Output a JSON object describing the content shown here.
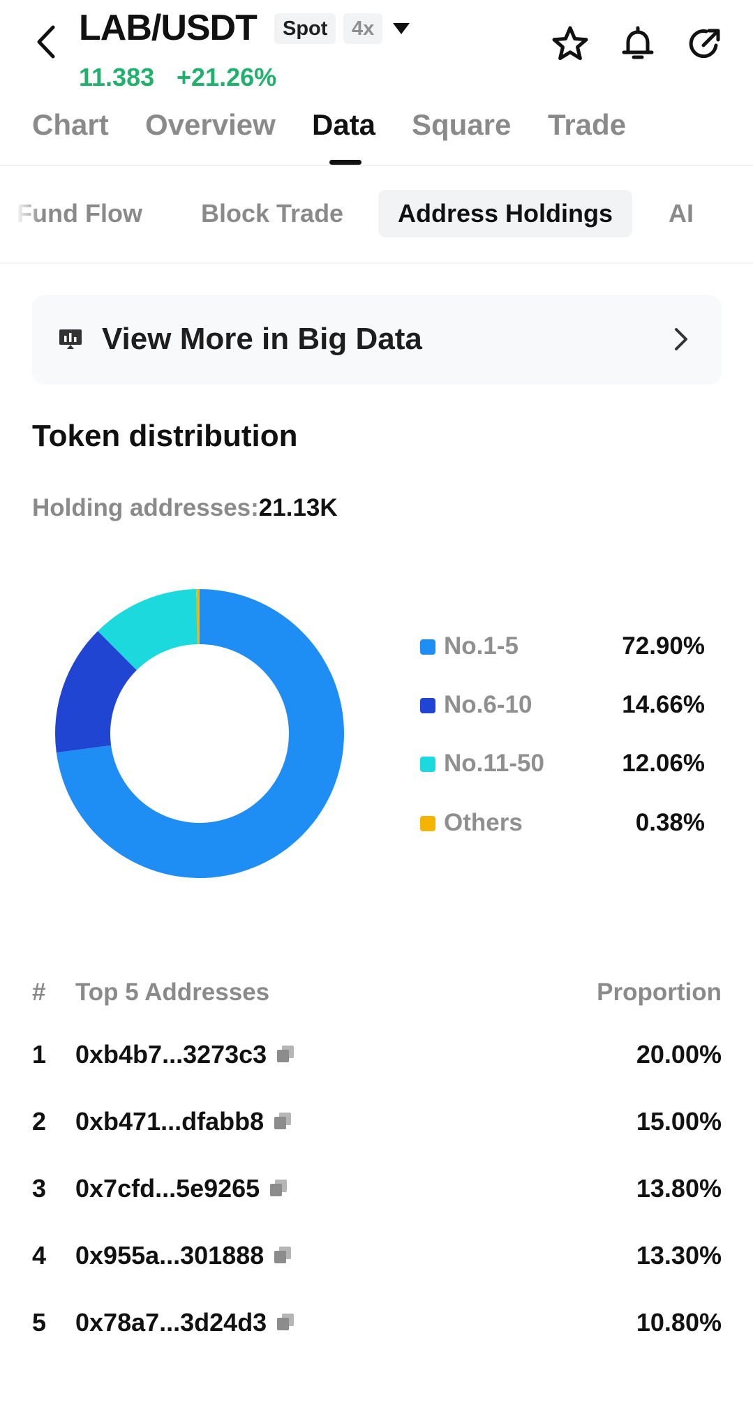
{
  "header": {
    "title": "LAB/USDT",
    "market_badge": "Spot",
    "leverage_badge": "4x",
    "price": "11.383",
    "change": "+21.26%",
    "accent_up": "#20b26c"
  },
  "main_tabs": [
    {
      "label": "Chart"
    },
    {
      "label": "Overview"
    },
    {
      "label": "Data",
      "active": true
    },
    {
      "label": "Square"
    },
    {
      "label": "Trade"
    }
  ],
  "sub_tabs": [
    {
      "label": "Fund Flow"
    },
    {
      "label": "Block Trade"
    },
    {
      "label": "Address Holdings",
      "active": true
    },
    {
      "label": "AI"
    }
  ],
  "banner": {
    "label": "View More in Big Data",
    "icon": "chart-board-icon"
  },
  "distribution": {
    "title": "Token distribution",
    "holding_label": "Holding addresses:",
    "holding_value": "21.13K"
  },
  "chart_data": {
    "type": "pie",
    "donut": true,
    "categories": [
      "No.1-5",
      "No.6-10",
      "No.11-50",
      "Others"
    ],
    "values": [
      72.9,
      14.66,
      12.06,
      0.38
    ],
    "labels": [
      "72.90%",
      "14.66%",
      "12.06%",
      "0.38%"
    ],
    "colors": [
      "#1e8ef5",
      "#1f45d2",
      "#1cd9dd",
      "#f5b400"
    ],
    "legend": "right"
  },
  "table": {
    "col_index": "#",
    "col_address": "Top 5 Addresses",
    "col_proportion": "Proportion",
    "rows": [
      {
        "index": "1",
        "address": "0xb4b7...3273c3",
        "proportion": "20.00%"
      },
      {
        "index": "2",
        "address": "0xb471...dfabb8",
        "proportion": "15.00%"
      },
      {
        "index": "3",
        "address": "0x7cfd...5e9265",
        "proportion": "13.80%"
      },
      {
        "index": "4",
        "address": "0x955a...301888",
        "proportion": "13.30%"
      },
      {
        "index": "5",
        "address": "0x78a7...3d24d3",
        "proportion": "10.80%"
      }
    ]
  }
}
